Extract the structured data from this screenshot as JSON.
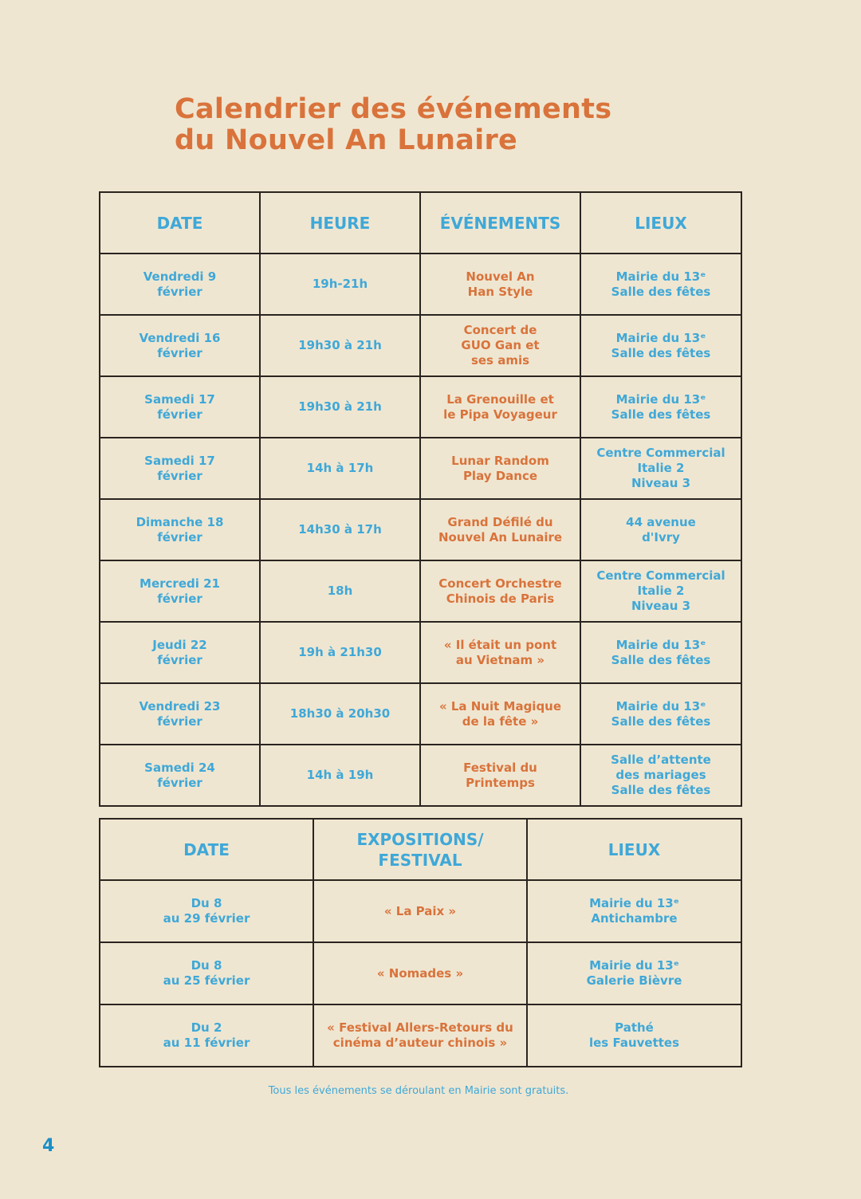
{
  "title": {
    "line1": "Calendrier des événements",
    "line2": "du Nouvel An Lunaire"
  },
  "colors": {
    "background": "#efe6d1",
    "title": "#d9733b",
    "blue_text": "#3fa8d8",
    "orange_text": "#d9733b",
    "border": "#2a2420"
  },
  "events_table": {
    "headers": [
      "DATE",
      "HEURE",
      "ÉVÉNEMENTS",
      "LIEUX"
    ],
    "rows": [
      {
        "date": [
          "Vendredi 9",
          "février"
        ],
        "time": "19h-21h",
        "event": [
          "Nouvel An",
          "Han Style"
        ],
        "place": [
          "Mairie du 13ᵉ",
          "Salle des fêtes"
        ]
      },
      {
        "date": [
          "Vendredi 16",
          "février"
        ],
        "time": "19h30 à 21h",
        "event": [
          "Concert de",
          "GUO Gan et",
          "ses amis"
        ],
        "place": [
          "Mairie du 13ᵉ",
          "Salle des fêtes"
        ]
      },
      {
        "date": [
          "Samedi 17",
          "février"
        ],
        "time": "19h30 à 21h",
        "event": [
          "La Grenouille et",
          "le Pipa Voyageur"
        ],
        "place": [
          "Mairie du 13ᵉ",
          "Salle des fêtes"
        ]
      },
      {
        "date": [
          "Samedi 17",
          "février"
        ],
        "time": "14h à 17h",
        "event": [
          "Lunar Random",
          "Play Dance"
        ],
        "place": [
          "Centre Commercial",
          "Italie 2",
          "Niveau 3"
        ]
      },
      {
        "date": [
          "Dimanche 18",
          "février"
        ],
        "time": "14h30 à 17h",
        "event": [
          "Grand Défilé du",
          "Nouvel An Lunaire"
        ],
        "place": [
          "44 avenue",
          "d'Ivry"
        ]
      },
      {
        "date": [
          "Mercredi 21",
          "février"
        ],
        "time": "18h",
        "event": [
          "Concert Orchestre",
          "Chinois de Paris"
        ],
        "place": [
          "Centre Commercial",
          "Italie 2",
          "Niveau 3"
        ]
      },
      {
        "date": [
          "Jeudi 22",
          "février"
        ],
        "time": "19h à 21h30",
        "event": [
          "« Il était un pont",
          "au Vietnam »"
        ],
        "place": [
          "Mairie du 13ᵉ",
          "Salle des fêtes"
        ]
      },
      {
        "date": [
          "Vendredi 23",
          "février"
        ],
        "time": "18h30 à 20h30",
        "event": [
          "« La Nuit Magique",
          "de la fête »"
        ],
        "place": [
          "Mairie du 13ᵉ",
          "Salle des fêtes"
        ]
      },
      {
        "date": [
          "Samedi 24",
          "février"
        ],
        "time": "14h à 19h",
        "event": [
          "Festival du",
          "Printemps"
        ],
        "place": [
          "Salle d’attente",
          "des mariages",
          "Salle des fêtes"
        ]
      }
    ]
  },
  "exhibitions_table": {
    "headers": [
      [
        "DATE"
      ],
      [
        "EXPOSITIONS/",
        "FESTIVAL"
      ],
      [
        "LIEUX"
      ]
    ],
    "rows": [
      {
        "date": [
          "Du 8",
          "au 29 février"
        ],
        "event": [
          "« La Paix »"
        ],
        "place": [
          "Mairie du 13ᵉ",
          "Antichambre"
        ]
      },
      {
        "date": [
          "Du 8",
          "au 25 février"
        ],
        "event": [
          "« Nomades »"
        ],
        "place": [
          "Mairie du 13ᵉ",
          "Galerie Bièvre"
        ]
      },
      {
        "date": [
          "Du 2",
          "au 11 février"
        ],
        "event": [
          "« Festival Allers-Retours du",
          "cinéma d’auteur chinois »"
        ],
        "place": [
          "Pathé",
          "les Fauvettes"
        ]
      }
    ]
  },
  "footnote": "Tous les événements se déroulant en Mairie sont gratuits.",
  "page_number": "4"
}
